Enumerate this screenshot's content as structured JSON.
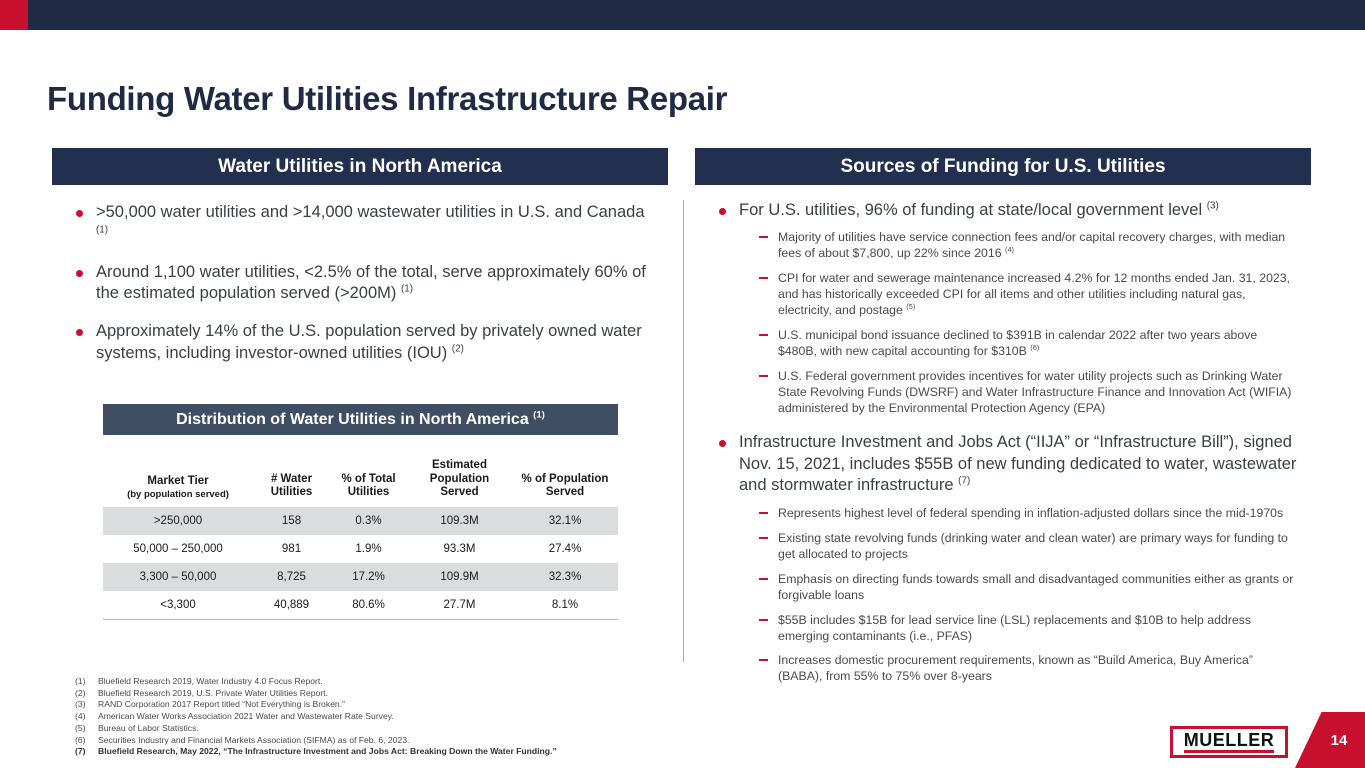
{
  "colors": {
    "navy": "#1F2A44",
    "slate": "#3F4E63",
    "red": "#C8102E",
    "row_shade": "#DBDCDE"
  },
  "slide": {
    "title": "Funding Water Utilities Infrastructure Repair",
    "page_number": "14"
  },
  "logo": {
    "text": "MUELLER"
  },
  "left_panel": {
    "header": "Water Utilities in North America",
    "bullets": [
      {
        "text": ">50,000 water utilities and >14,000 wastewater utilities in U.S. and Canada ",
        "sup": "(1)"
      },
      {
        "text": "Around 1,100 water utilities, <2.5% of the total, serve approximately 60% of the estimated population served (>200M) ",
        "sup": "(1)"
      },
      {
        "text": "Approximately 14% of the U.S. population served by privately owned water systems, including investor-owned utilities (IOU) ",
        "sup": "(2)"
      }
    ],
    "table": {
      "title": "Distribution of Water Utilities in North America ",
      "title_sup": "(1)",
      "columns": [
        {
          "label": "Market Tier",
          "sub": "(by population served)"
        },
        {
          "label": "# Water Utilities",
          "sub": ""
        },
        {
          "label": "% of Total Utilities",
          "sub": ""
        },
        {
          "label": "Estimated Population Served",
          "sub": ""
        },
        {
          "label": "% of Population Served",
          "sub": ""
        }
      ],
      "rows": [
        [
          ">250,000",
          "158",
          "0.3%",
          "109.3M",
          "32.1%"
        ],
        [
          "50,000 – 250,000",
          "981",
          "1.9%",
          "93.3M",
          "27.4%"
        ],
        [
          "3,300 – 50,000",
          "8,725",
          "17.2%",
          "109.9M",
          "32.3%"
        ],
        [
          "<3,300",
          "40,889",
          "80.6%",
          "27.7M",
          "8.1%"
        ]
      ]
    },
    "footnotes": [
      {
        "n": "(1)",
        "text": "Bluefield Research 2019, Water Industry 4.0 Focus Report."
      },
      {
        "n": "(2)",
        "text": "Bluefield Research 2019, U.S. Private Water Utilities Report."
      },
      {
        "n": "(3)",
        "text": "RAND Corporation 2017 Report titled “Not Everything is Broken.”"
      },
      {
        "n": "(4)",
        "text": "American Water Works Association 2021 Water and Wastewater Rate Survey."
      },
      {
        "n": "(5)",
        "text": "Bureau of Labor Statistics."
      },
      {
        "n": "(6)",
        "text": "Securities Industry and Financial Markets Association (SIFMA) as of Feb. 6, 2023."
      },
      {
        "n": "(7)",
        "text": "Bluefield Research, May 2022, “The Infrastructure Investment and Jobs Act: Breaking Down the Water Funding.”"
      }
    ]
  },
  "right_panel": {
    "header": "Sources of Funding for U.S. Utilities",
    "sections": [
      {
        "bullet": "For U.S. utilities, 96% of funding at state/local government level ",
        "sup": "(3)",
        "subs": [
          {
            "text": "Majority of utilities have service connection fees and/or capital recovery charges, with median fees of about $7,800, up 22% since 2016 ",
            "sup": "(4)"
          },
          {
            "text": "CPI for water and sewerage maintenance increased 4.2% for 12 months ended Jan. 31, 2023, and has historically exceeded CPI for all items and other utilities including natural gas, electricity, and postage ",
            "sup": "(5)"
          },
          {
            "text": "U.S. municipal bond issuance declined to $391B in calendar 2022 after two years above $480B, with new capital accounting for $310B ",
            "sup": "(6)"
          },
          {
            "text": "U.S. Federal government provides incentives for water utility projects such as Drinking Water State Revolving Funds (DWSRF) and Water Infrastructure Finance and Innovation Act (WIFIA) administered by the Environmental Protection Agency (EPA)",
            "sup": ""
          }
        ]
      },
      {
        "bullet": "Infrastructure Investment and Jobs Act (“IIJA” or “Infrastructure Bill”), signed Nov. 15, 2021, includes $55B of new funding dedicated to water, wastewater and stormwater infrastructure ",
        "sup": "(7)",
        "subs": [
          {
            "text": "Represents highest level of federal spending in inflation-adjusted dollars since the mid-1970s",
            "sup": ""
          },
          {
            "text": "Existing state revolving funds (drinking water and clean water) are primary ways for funding to get allocated to projects",
            "sup": ""
          },
          {
            "text": "Emphasis on directing funds towards small and disadvantaged communities either as grants or forgivable loans",
            "sup": ""
          },
          {
            "text": "$55B includes $15B for lead service line (LSL) replacements and $10B to help address emerging contaminants (i.e., PFAS)",
            "sup": ""
          },
          {
            "text": "Increases domestic procurement requirements, known as “Build America, Buy America” (BABA), from 55% to 75% over 8-years",
            "sup": ""
          }
        ]
      }
    ]
  }
}
